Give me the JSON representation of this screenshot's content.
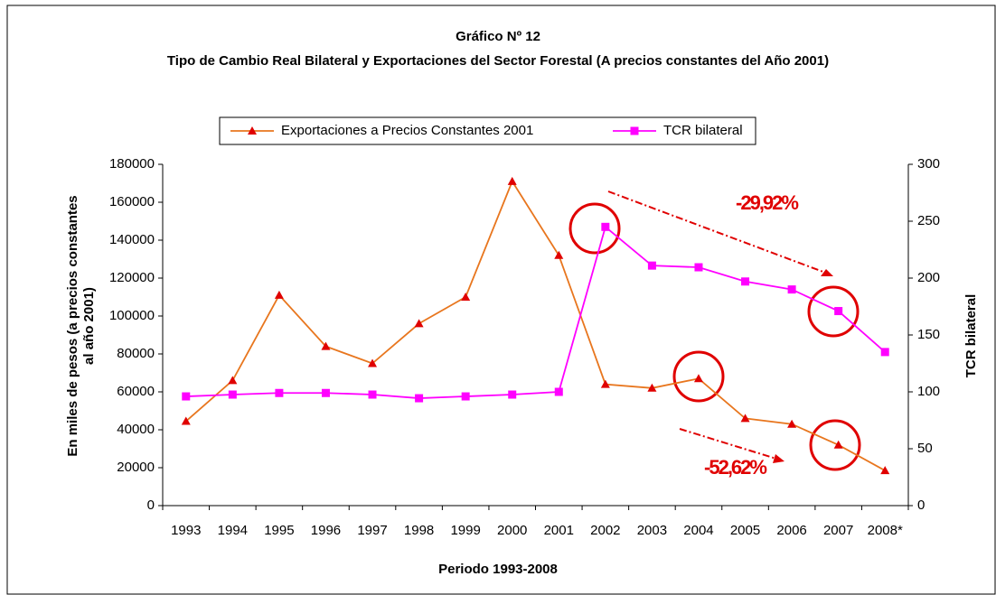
{
  "chart_data": {
    "type": "line",
    "title": "Gráfico Nº 12",
    "subtitle": "Tipo de Cambio Real Bilateral y Exportaciones del Sector Forestal (A precios constantes del Año 2001)",
    "xlabel": "Periodo 1993-2008",
    "ylabel": "En miles de pesos (a precios constantes al año 2001)",
    "y2label": "TCR bilateral",
    "categories": [
      "1993",
      "1994",
      "1995",
      "1996",
      "1997",
      "1998",
      "1999",
      "2000",
      "2001",
      "2002",
      "2003",
      "2004",
      "2005",
      "2006",
      "2007",
      "2008*"
    ],
    "series": [
      {
        "name": "Exportaciones a Precios Constantes 2001",
        "color": "#e8761e",
        "marker_color": "#e00000",
        "marker": "triangle",
        "values": [
          44500,
          66000,
          111000,
          84000,
          75000,
          96000,
          110000,
          171000,
          132000,
          64000,
          62000,
          67000,
          46000,
          43000,
          32000,
          18500
        ]
      },
      {
        "name": "TCR bilateral",
        "color": "#ff00ff",
        "marker_color": "#ff00ff",
        "marker": "square",
        "axis": "y2",
        "values": [
          96,
          97.6,
          99,
          99,
          97.6,
          94.4,
          96,
          97.6,
          100,
          245,
          211,
          209.5,
          197,
          190,
          171,
          135
        ]
      }
    ],
    "ylim": [
      0,
      180000
    ],
    "yticks": [
      0,
      20000,
      40000,
      60000,
      80000,
      100000,
      120000,
      140000,
      160000,
      180000
    ],
    "y2lim": [
      0,
      300
    ],
    "y2ticks": [
      0,
      50,
      100,
      150,
      200,
      250,
      300
    ],
    "annotations": [
      "-29,92%",
      "-52,62%"
    ],
    "grid": false
  }
}
